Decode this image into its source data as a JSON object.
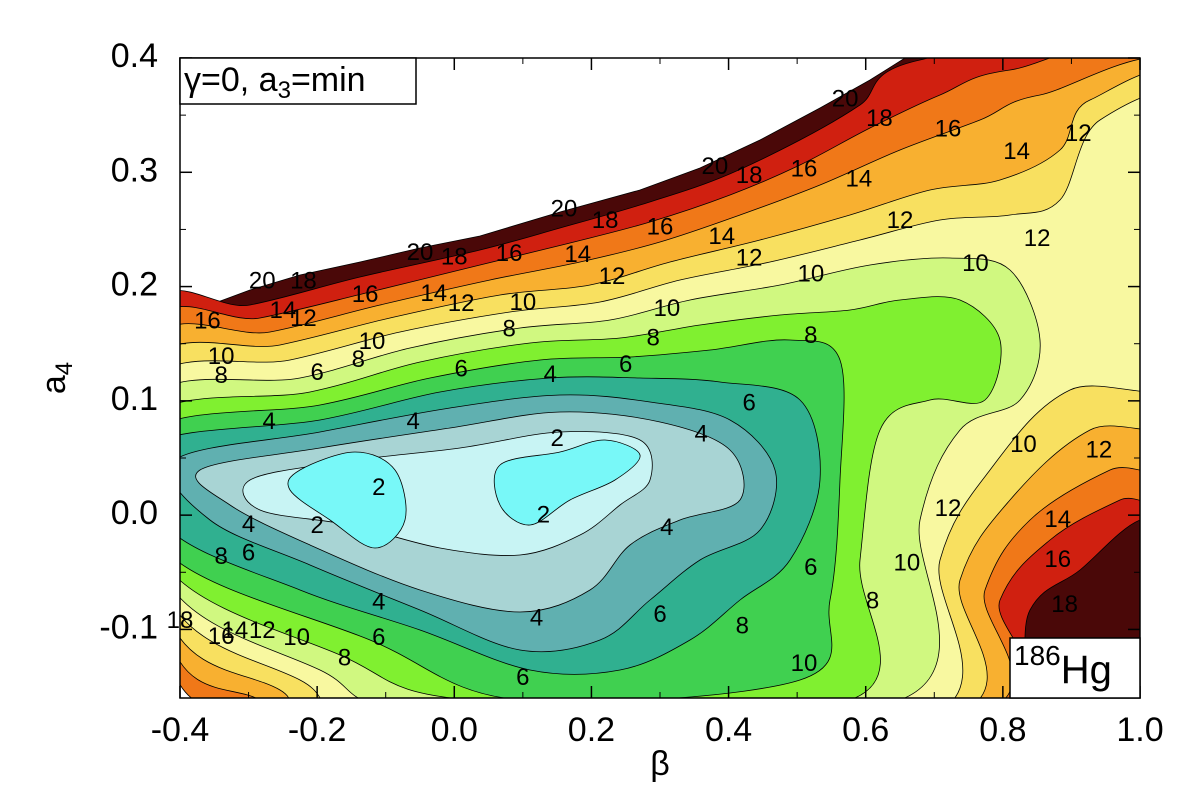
{
  "chart_data": {
    "type": "contour",
    "x_label": "β",
    "y_label": {
      "base": "a",
      "subscript": "4"
    },
    "panel_label": {
      "before": "γ=0, a",
      "subscript": "3",
      "after": "=min"
    },
    "nucleus_label": {
      "superscript": "186",
      "symbol": "Hg"
    },
    "xlim": [
      -0.4,
      1.0
    ],
    "ylim": [
      -0.16,
      0.4
    ],
    "xticks": [
      -0.4,
      -0.2,
      {
        "value": 0,
        "label": "0.0"
      },
      0.2,
      0.4,
      0.6,
      0.8,
      {
        "value": 1,
        "label": "1.0"
      }
    ],
    "yticks": [
      0.4,
      0.3,
      0.2,
      0.1,
      {
        "value": 0,
        "label": "0.0"
      },
      -0.1
    ],
    "contour_labels": [
      {
        "text": "20",
        "x": 0.57,
        "y": 0.363
      },
      {
        "text": "18",
        "x": 0.62,
        "y": 0.346
      },
      {
        "text": "16",
        "x": 0.72,
        "y": 0.337
      },
      {
        "text": "14",
        "x": 0.82,
        "y": 0.317
      },
      {
        "text": "12",
        "x": 0.91,
        "y": 0.333
      },
      {
        "text": "20",
        "x": 0.38,
        "y": 0.304
      },
      {
        "text": "18",
        "x": 0.43,
        "y": 0.296
      },
      {
        "text": "16",
        "x": 0.51,
        "y": 0.302
      },
      {
        "text": "14",
        "x": 0.59,
        "y": 0.293
      },
      {
        "text": "12",
        "x": 0.65,
        "y": 0.257
      },
      {
        "text": "12",
        "x": 0.85,
        "y": 0.241
      },
      {
        "text": "10",
        "x": 0.76,
        "y": 0.219
      },
      {
        "text": "20",
        "x": 0.16,
        "y": 0.267
      },
      {
        "text": "18",
        "x": 0.22,
        "y": 0.257
      },
      {
        "text": "16",
        "x": 0.3,
        "y": 0.251
      },
      {
        "text": "14",
        "x": 0.39,
        "y": 0.243
      },
      {
        "text": "12",
        "x": 0.43,
        "y": 0.224
      },
      {
        "text": "10",
        "x": 0.52,
        "y": 0.21
      },
      {
        "text": "20",
        "x": -0.05,
        "y": 0.229
      },
      {
        "text": "18",
        "x": 0.0,
        "y": 0.225
      },
      {
        "text": "16",
        "x": 0.08,
        "y": 0.228
      },
      {
        "text": "14",
        "x": 0.18,
        "y": 0.227
      },
      {
        "text": "12",
        "x": 0.23,
        "y": 0.208
      },
      {
        "text": "10",
        "x": 0.31,
        "y": 0.18
      },
      {
        "text": "20",
        "x": -0.28,
        "y": 0.204
      },
      {
        "text": "18",
        "x": -0.22,
        "y": 0.204
      },
      {
        "text": "16",
        "x": -0.13,
        "y": 0.192
      },
      {
        "text": "14",
        "x": -0.03,
        "y": 0.193
      },
      {
        "text": "12",
        "x": 0.01,
        "y": 0.184
      },
      {
        "text": "10",
        "x": 0.1,
        "y": 0.185
      },
      {
        "text": "8",
        "x": 0.08,
        "y": 0.162
      },
      {
        "text": "8",
        "x": 0.29,
        "y": 0.154
      },
      {
        "text": "8",
        "x": 0.52,
        "y": 0.156
      },
      {
        "text": "14",
        "x": -0.25,
        "y": 0.178
      },
      {
        "text": "12",
        "x": -0.22,
        "y": 0.171
      },
      {
        "text": "16",
        "x": -0.36,
        "y": 0.169
      },
      {
        "text": "10",
        "x": -0.12,
        "y": 0.151
      },
      {
        "text": "10",
        "x": -0.34,
        "y": 0.138
      },
      {
        "text": "8",
        "x": -0.34,
        "y": 0.121
      },
      {
        "text": "8",
        "x": -0.14,
        "y": 0.135
      },
      {
        "text": "6",
        "x": 0.25,
        "y": 0.131
      },
      {
        "text": "6",
        "x": -0.2,
        "y": 0.124
      },
      {
        "text": "6",
        "x": 0.01,
        "y": 0.127
      },
      {
        "text": "4",
        "x": 0.14,
        "y": 0.122
      },
      {
        "text": "6",
        "x": 0.43,
        "y": 0.097
      },
      {
        "text": "4",
        "x": -0.27,
        "y": 0.081
      },
      {
        "text": "4",
        "x": -0.06,
        "y": 0.081
      },
      {
        "text": "4",
        "x": 0.36,
        "y": 0.07
      },
      {
        "text": "2",
        "x": 0.15,
        "y": 0.066
      },
      {
        "text": "10",
        "x": 0.83,
        "y": 0.061
      },
      {
        "text": "12",
        "x": 0.94,
        "y": 0.056
      },
      {
        "text": "2",
        "x": -0.11,
        "y": 0.023
      },
      {
        "text": "2",
        "x": -0.2,
        "y": -0.01
      },
      {
        "text": "2",
        "x": 0.13,
        "y": -0.001
      },
      {
        "text": "12",
        "x": 0.72,
        "y": 0.005
      },
      {
        "text": "4",
        "x": -0.3,
        "y": -0.009
      },
      {
        "text": "4",
        "x": 0.31,
        "y": -0.012
      },
      {
        "text": "14",
        "x": 0.88,
        "y": -0.005
      },
      {
        "text": "8",
        "x": -0.34,
        "y": -0.037
      },
      {
        "text": "6",
        "x": -0.3,
        "y": -0.034
      },
      {
        "text": "10",
        "x": 0.66,
        "y": -0.043
      },
      {
        "text": "16",
        "x": 0.88,
        "y": -0.04
      },
      {
        "text": "6",
        "x": 0.52,
        "y": -0.047
      },
      {
        "text": "4",
        "x": -0.11,
        "y": -0.077
      },
      {
        "text": "8",
        "x": 0.61,
        "y": -0.076
      },
      {
        "text": "18",
        "x": 0.89,
        "y": -0.079
      },
      {
        "text": "4",
        "x": 0.12,
        "y": -0.091
      },
      {
        "text": "6",
        "x": 0.3,
        "y": -0.088
      },
      {
        "text": "8",
        "x": 0.42,
        "y": -0.098
      },
      {
        "text": "18",
        "x": -0.4,
        "y": -0.093
      },
      {
        "text": "16",
        "x": -0.34,
        "y": -0.107
      },
      {
        "text": "14",
        "x": -0.32,
        "y": -0.102
      },
      {
        "text": "12",
        "x": -0.28,
        "y": -0.102
      },
      {
        "text": "10",
        "x": -0.23,
        "y": -0.108
      },
      {
        "text": "6",
        "x": -0.11,
        "y": -0.108
      },
      {
        "text": "8",
        "x": -0.16,
        "y": -0.126
      },
      {
        "text": "10",
        "x": 0.51,
        "y": -0.131
      },
      {
        "text": "6",
        "x": 0.1,
        "y": -0.143
      }
    ]
  }
}
